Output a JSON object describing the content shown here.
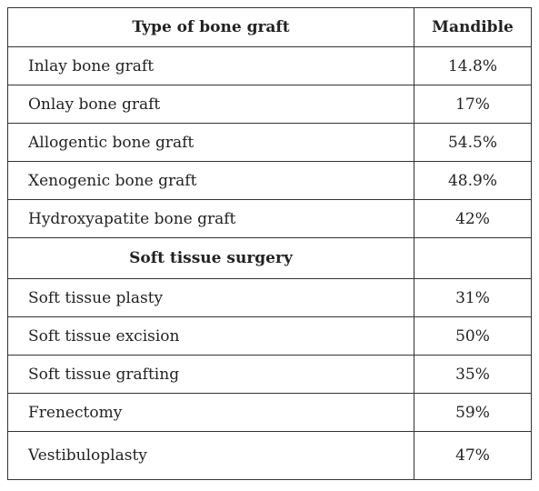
{
  "table": {
    "header": [
      "Type of bone graft",
      "Mandible"
    ],
    "rows": [
      [
        "Inlay bone graft",
        "14.8%"
      ],
      [
        "Onlay bone graft",
        "17%"
      ],
      [
        "Allogentic bone graft",
        "54.5%"
      ],
      [
        "Xenogenic bone graft",
        "48.9%"
      ],
      [
        "Hydroxyapatite bone graft",
        "42%"
      ]
    ],
    "section": "Soft tissue surgery",
    "rows2": [
      [
        "Soft tissue plasty",
        "31%"
      ],
      [
        "Soft tissue excision",
        "50%"
      ],
      [
        "Soft tissue grafting",
        "35%"
      ],
      [
        "Frenectomy",
        "59%"
      ],
      [
        "Vestibuloplasty",
        "47%"
      ]
    ]
  }
}
